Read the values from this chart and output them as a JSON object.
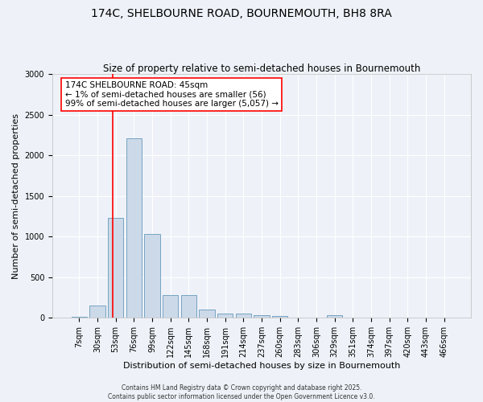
{
  "title": "174C, SHELBOURNE ROAD, BOURNEMOUTH, BH8 8RA",
  "subtitle": "Size of property relative to semi-detached houses in Bournemouth",
  "xlabel": "Distribution of semi-detached houses by size in Bournemouth",
  "ylabel": "Number of semi-detached properties",
  "categories": [
    "7sqm",
    "30sqm",
    "53sqm",
    "76sqm",
    "99sqm",
    "122sqm",
    "145sqm",
    "168sqm",
    "191sqm",
    "214sqm",
    "237sqm",
    "260sqm",
    "283sqm",
    "306sqm",
    "329sqm",
    "351sqm",
    "374sqm",
    "397sqm",
    "420sqm",
    "443sqm",
    "466sqm"
  ],
  "values": [
    18,
    150,
    1230,
    2210,
    1030,
    280,
    280,
    100,
    55,
    55,
    35,
    20,
    0,
    0,
    30,
    0,
    0,
    0,
    0,
    0,
    0
  ],
  "bar_color": "#ccd9e8",
  "bar_edge_color": "#6699bb",
  "background_color": "#eef2f8",
  "grid_color": "#dddddd",
  "ylim": [
    0,
    3000
  ],
  "red_line_x": 1.83,
  "annotation_title": "174C SHELBOURNE ROAD: 45sqm",
  "annotation_line1": "← 1% of semi-detached houses are smaller (56)",
  "annotation_line2": "99% of semi-detached houses are larger (5,057) →",
  "footer1": "Contains HM Land Registry data © Crown copyright and database right 2025.",
  "footer2": "Contains public sector information licensed under the Open Government Licence v3.0.",
  "title_fontsize": 10,
  "subtitle_fontsize": 8.5,
  "axis_label_fontsize": 8,
  "tick_fontsize": 7,
  "annotation_fontsize": 7.5,
  "footer_fontsize": 5.5
}
